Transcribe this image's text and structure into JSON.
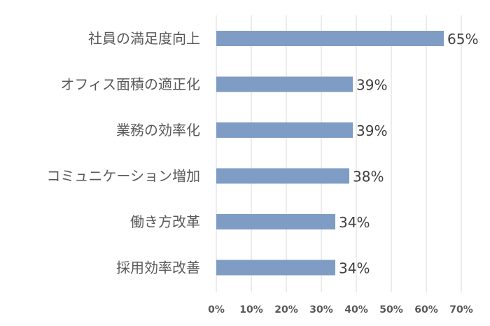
{
  "chart_data": {
    "type": "bar",
    "orientation": "horizontal",
    "categories": [
      "社員の満足度向上",
      "オフィス面積の適正化",
      "業務の効率化",
      "コミュニケーション増加",
      "働き方改革",
      "採用効率改善"
    ],
    "values": [
      65,
      39,
      39,
      38,
      34,
      34
    ],
    "data_labels": [
      "65%",
      "39%",
      "39%",
      "38%",
      "34%",
      "34%"
    ],
    "x_ticks": [
      "0%",
      "10%",
      "20%",
      "30%",
      "40%",
      "50%",
      "60%",
      "70%"
    ],
    "xlim": [
      0,
      70
    ],
    "grid": "vertical",
    "bar_color": "#7f9dc4",
    "legend": "none"
  }
}
